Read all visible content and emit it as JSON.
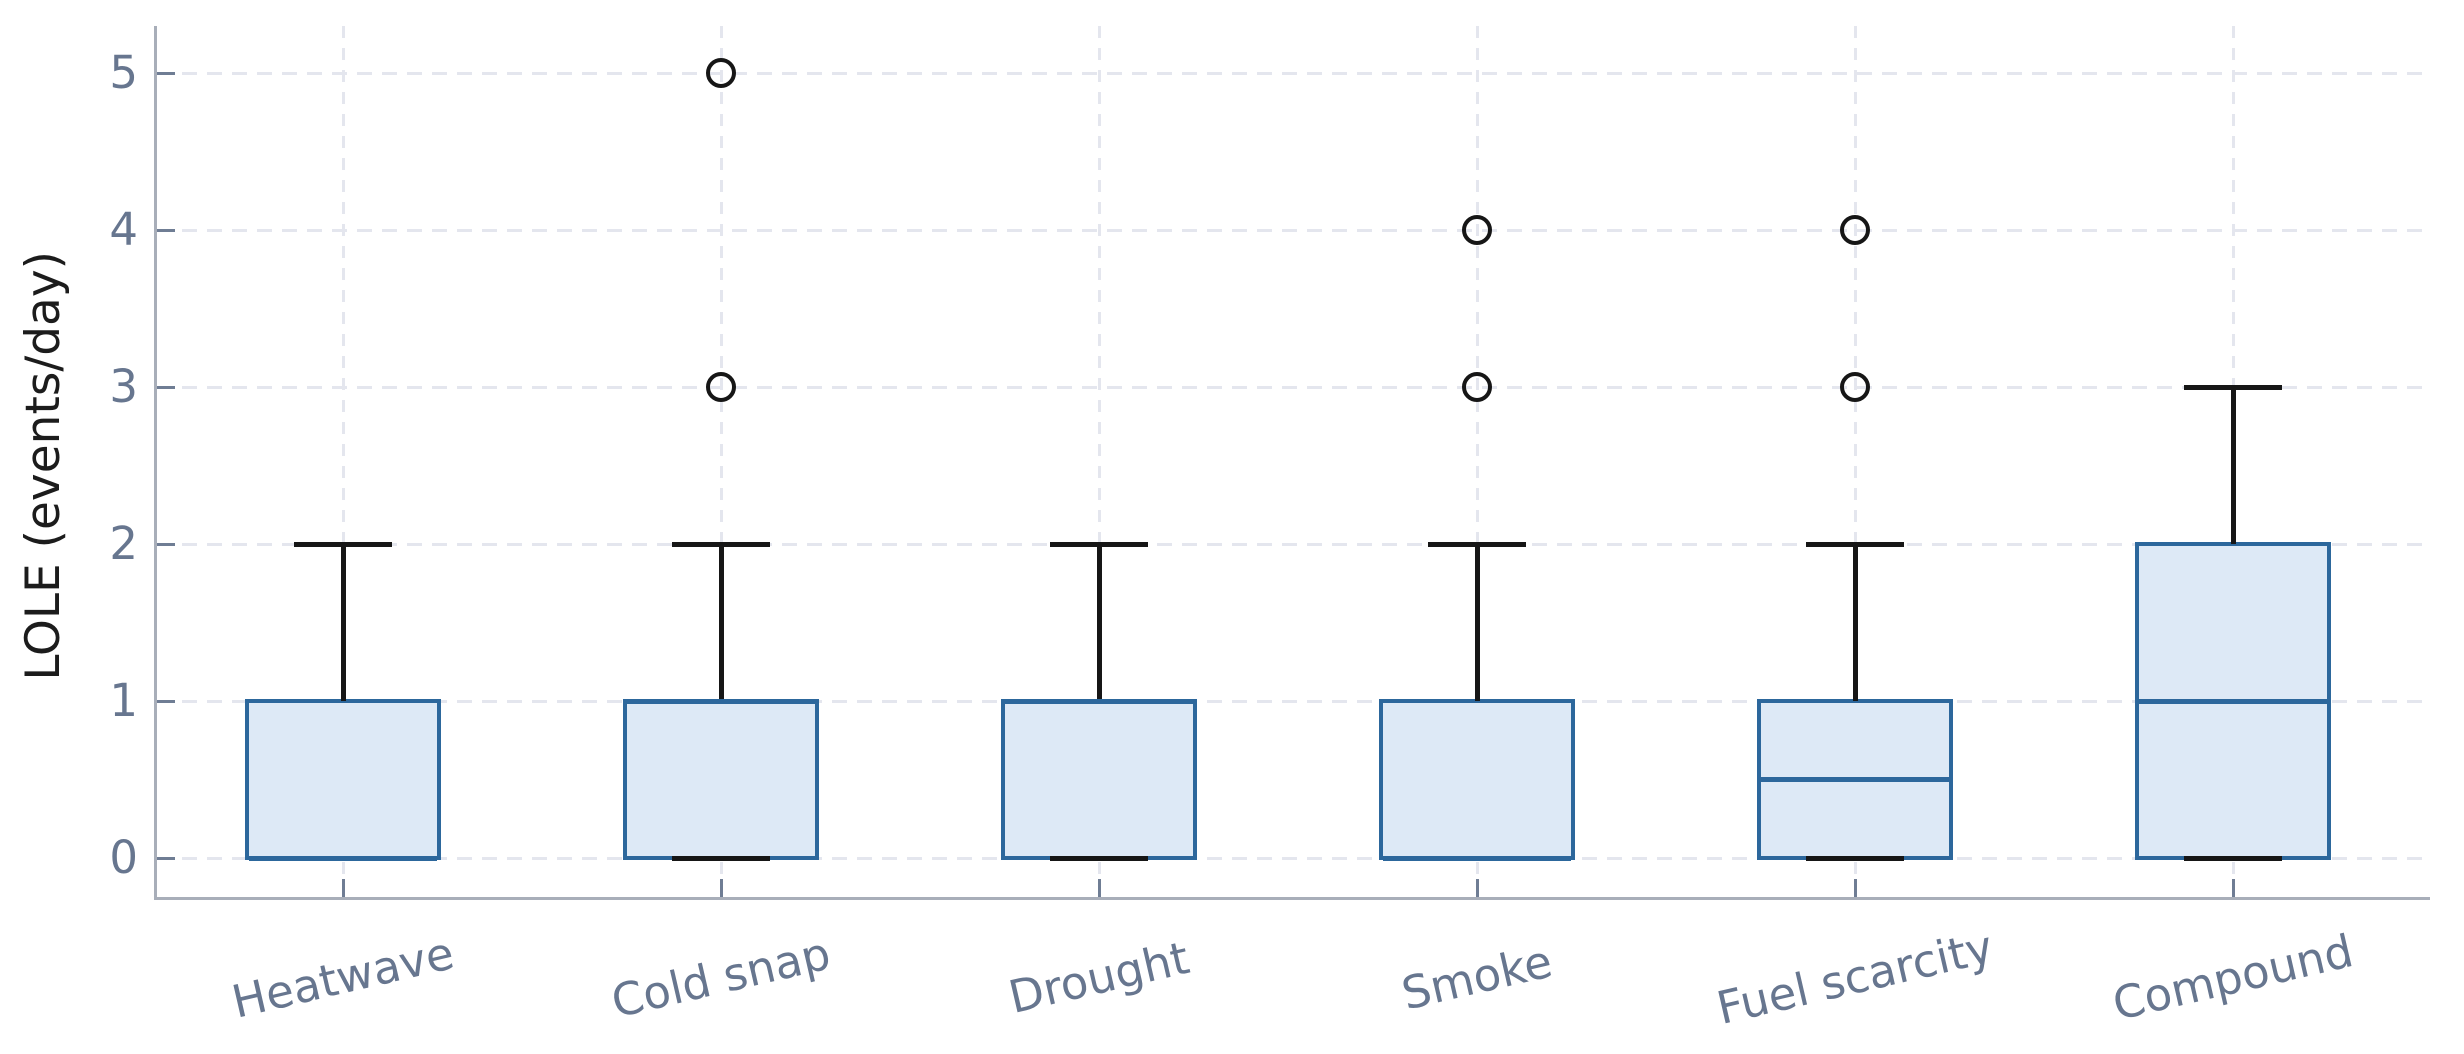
{
  "chart_data": {
    "type": "box",
    "ylabel": "LOLE (events/day)",
    "categories": [
      "Heatwave",
      "Cold snap",
      "Drought",
      "Smoke",
      "Fuel scarcity",
      "Compound"
    ],
    "yticks": [
      0,
      1,
      2,
      3,
      4,
      5
    ],
    "ylim": [
      -0.27,
      5.29
    ],
    "grid": "dashed, horizontal and vertical",
    "legend": "none",
    "series": [
      {
        "name": "Heatwave",
        "whislo": 0,
        "q1": 0,
        "med": 0,
        "q3": 1,
        "whishi": 2,
        "fliers": []
      },
      {
        "name": "Cold snap",
        "whislo": 0,
        "q1": 0,
        "med": 1,
        "q3": 1,
        "whishi": 2,
        "fliers": [
          3,
          5
        ]
      },
      {
        "name": "Drought",
        "whislo": 0,
        "q1": 0,
        "med": 1,
        "q3": 1,
        "whishi": 2,
        "fliers": []
      },
      {
        "name": "Smoke",
        "whislo": 0,
        "q1": 0,
        "med": 0,
        "q3": 1,
        "whishi": 2,
        "fliers": [
          3,
          4
        ]
      },
      {
        "name": "Fuel scarcity",
        "whislo": 0,
        "q1": 0,
        "med": 0.5,
        "q3": 1,
        "whishi": 2,
        "fliers": [
          3,
          4
        ]
      },
      {
        "name": "Compound",
        "whislo": 0,
        "q1": 0,
        "med": 1,
        "q3": 2,
        "whishi": 3,
        "fliers": []
      }
    ],
    "colors": {
      "box_fill": "#dde9f6",
      "box_edge": "#2c679c",
      "whisker": "#161616",
      "grid": "#e4e6ee",
      "spine": "#a8aeb9",
      "tick": "#6f7d94",
      "tick_label": "#67768f",
      "axis_label": "#1c1c1c"
    }
  }
}
